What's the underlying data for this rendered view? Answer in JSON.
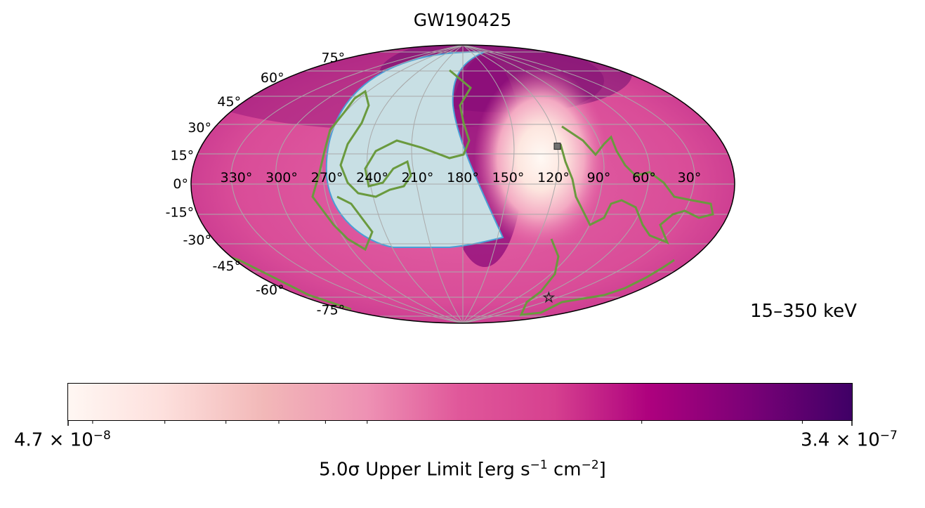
{
  "chart_data": {
    "type": "heatmap",
    "projection": "mollweide",
    "title": "GW190425",
    "energy_band": "15–350 keV",
    "lon_tick_labels": [
      "330°",
      "300°",
      "270°",
      "240°",
      "210°",
      "180°",
      "150°",
      "120°",
      "90°",
      "60°",
      "30°"
    ],
    "lon_ticks": [
      330,
      300,
      270,
      240,
      210,
      180,
      150,
      120,
      90,
      60,
      30
    ],
    "lat_tick_labels": [
      "75°",
      "60°",
      "45°",
      "30°",
      "15°",
      "0°",
      "-15°",
      "-30°",
      "-45°",
      "-60°",
      "-75°"
    ],
    "lat_ticks": [
      75,
      60,
      45,
      30,
      15,
      0,
      -15,
      -30,
      -45,
      -60,
      -75
    ],
    "lon_direction": "decreasing-left-to-right",
    "grid": true,
    "colorbar": {
      "label_prefix": "5.0σ Upper Limit [erg s",
      "label_mid": " cm",
      "label_end": "]",
      "exp_s": "−1",
      "exp_cm": "−2",
      "min_mant": "4.7",
      "min_exp": "−8",
      "max_mant": "3.4",
      "max_exp": "−7",
      "min": 4.7e-08,
      "max": 3.4e-07,
      "scale": "log",
      "cmap": "RdPu",
      "placement": "bottom"
    },
    "earth_occulted_region": {
      "center_lon": 210,
      "center_lat": -5,
      "radius_deg": 67,
      "color": "#c8dfe4"
    },
    "sensitive_region": {
      "center_lon": 115,
      "center_lat": 15,
      "color": "#fff7f3"
    },
    "markers": [
      {
        "type": "square",
        "lon": 115,
        "lat": 20,
        "color": "#707070"
      },
      {
        "type": "star",
        "lon": 82,
        "lat": -65,
        "color": "#ffffff"
      }
    ],
    "contour_color": "#6a9a3e",
    "sky_colors": {
      "low": "#fff7f3",
      "mid": "#e0579a",
      "high": "#49006a"
    }
  }
}
